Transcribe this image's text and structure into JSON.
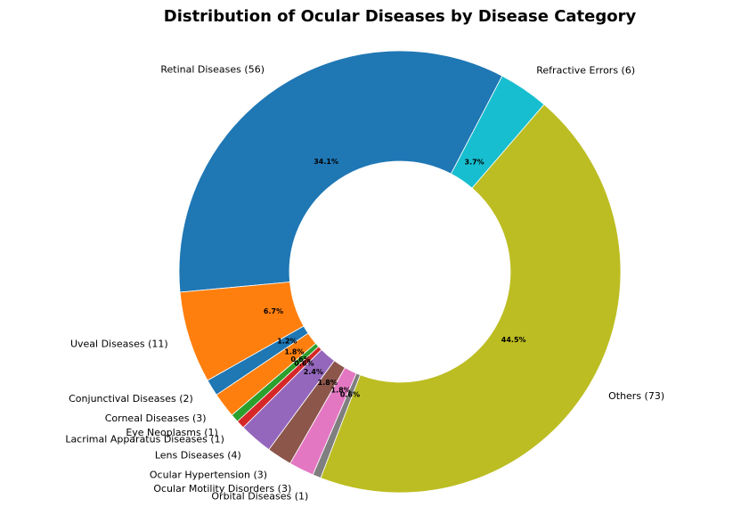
{
  "chart_data": {
    "type": "pie",
    "title": "Distribution of Ocular Diseases by Disease Category",
    "donut": true,
    "slices": [
      {
        "label": "Retinal Diseases (56)",
        "value": 56,
        "percent_label": "34.1%",
        "color": "#1f77b4"
      },
      {
        "label": "Uveal Diseases (11)",
        "value": 11,
        "percent_label": "6.7%",
        "color": "#ff7f0e"
      },
      {
        "label": "Conjunctival Diseases (2)",
        "value": 2,
        "percent_label": "1.2%",
        "color": "#1f77b4"
      },
      {
        "label": "Corneal Diseases (3)",
        "value": 3,
        "percent_label": "1.8%",
        "color": "#ff7f0e"
      },
      {
        "label": "Eye Neoplasms (1)",
        "value": 1,
        "percent_label": "0.6%",
        "color": "#2ca02c"
      },
      {
        "label": "Lacrimal Apparatus Diseases (1)",
        "value": 1,
        "percent_label": "0.6%",
        "color": "#d62728"
      },
      {
        "label": "Lens Diseases (4)",
        "value": 4,
        "percent_label": "2.4%",
        "color": "#9467bd"
      },
      {
        "label": "Ocular Hypertension (3)",
        "value": 3,
        "percent_label": "1.8%",
        "color": "#8c564b"
      },
      {
        "label": "Ocular Motility Disorders (3)",
        "value": 3,
        "percent_label": "1.8%",
        "color": "#e377c2"
      },
      {
        "label": "Orbital Diseases (1)",
        "value": 1,
        "percent_label": "0.6%",
        "color": "#7f7f7f"
      },
      {
        "label": "Others (73)",
        "value": 73,
        "percent_label": "44.5%",
        "color": "#bcbd22"
      },
      {
        "label": "Refractive Errors (6)",
        "value": 6,
        "percent_label": "3.7%",
        "color": "#17becf"
      }
    ]
  }
}
